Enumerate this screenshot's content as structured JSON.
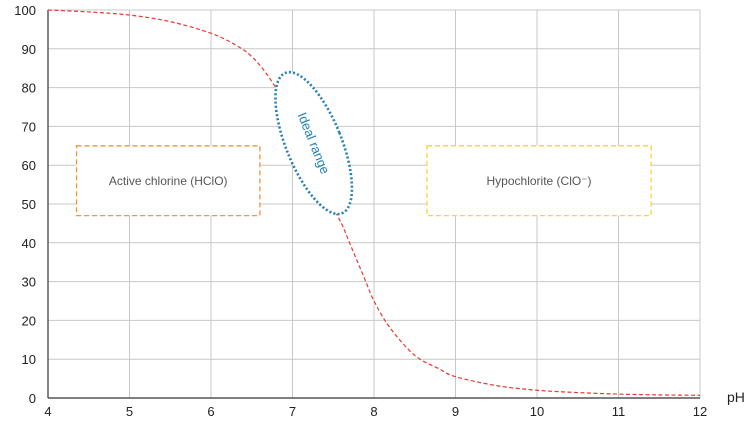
{
  "chart_data": {
    "type": "line",
    "title": "",
    "xlabel": "pH",
    "ylabel": "",
    "xlim": [
      4,
      12
    ],
    "ylim": [
      0,
      100
    ],
    "x_ticks": [
      4,
      5,
      6,
      7,
      8,
      9,
      10,
      11,
      12
    ],
    "y_ticks": [
      0,
      10,
      20,
      30,
      40,
      50,
      60,
      70,
      80,
      90,
      100
    ],
    "grid": true,
    "series": [
      {
        "name": "",
        "style": "dashed",
        "color": "#e53935",
        "x": [
          4.0,
          4.5,
          5.0,
          5.5,
          6.0,
          6.3,
          6.5,
          6.7,
          6.9,
          7.0,
          7.2,
          7.4,
          7.6,
          7.7,
          7.8,
          7.9,
          8.0,
          8.2,
          8.5,
          8.8,
          9.0,
          9.5,
          10.0,
          10.5,
          11.0,
          11.5,
          12.0
        ],
        "y": [
          100,
          99.5,
          98.7,
          97.0,
          94.0,
          91.0,
          88.0,
          83.0,
          76.0,
          70.0,
          61.0,
          53.0,
          45.0,
          40.0,
          35.0,
          30.0,
          25.0,
          18.0,
          11.0,
          7.5,
          5.5,
          3.2,
          2.0,
          1.4,
          1.0,
          0.8,
          0.7
        ]
      }
    ],
    "annotations": [
      {
        "kind": "box",
        "text": "Active chlorine (HClO)",
        "color": "#f0943a",
        "x_range": [
          4.35,
          6.6
        ],
        "y_range": [
          47,
          65
        ]
      },
      {
        "kind": "box",
        "text": "Hypochlorite (ClO⁻)",
        "color": "#f2d53d",
        "x_range": [
          8.65,
          11.4
        ],
        "y_range": [
          47,
          65
        ]
      },
      {
        "kind": "ellipse",
        "text": "Ideal range",
        "color": "#1f7fb6",
        "center": [
          7.26,
          65.7
        ],
        "radii": [
          0.34,
          19.5
        ],
        "rotation_deg": -22
      }
    ]
  }
}
